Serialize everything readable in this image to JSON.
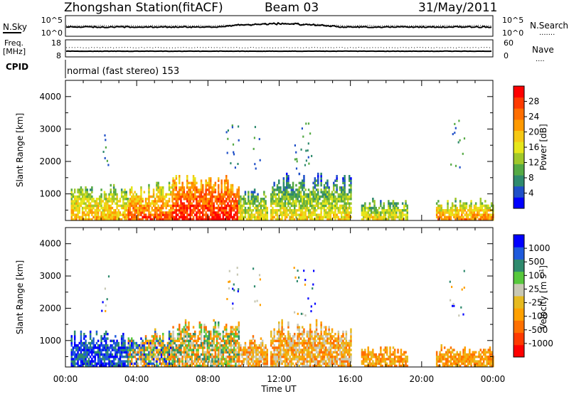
{
  "header": {
    "station": "Zhongshan Station",
    "algorithm": "(fitACF)",
    "beam": "Beam 03",
    "date": "31/May/2011"
  },
  "panels": {
    "nsky": {
      "left_label": "N.Sky",
      "left_ticks": [
        "10^5",
        "10^0"
      ],
      "right_label": "N.Search",
      "right_ticks": [
        "10^5",
        "10^0"
      ],
      "right_legend": "......."
    },
    "freq": {
      "left_label_1": "Freq.",
      "left_label_2": "[MHz]",
      "left_ticks": [
        "18",
        "8"
      ],
      "right_label": "Nave",
      "right_ticks": [
        "60",
        "0"
      ],
      "right_legend": "...."
    },
    "cpid": {
      "label": "CPID",
      "text": "normal (fast stereo) 153"
    }
  },
  "x_axis": {
    "label": "Time UT",
    "ticks": [
      "00:00",
      "04:00",
      "08:00",
      "12:00",
      "16:00",
      "20:00",
      "00:00"
    ]
  },
  "colorbars": {
    "power": {
      "label": "Power [dB]",
      "ticks": [
        "4",
        "8",
        "12",
        "16",
        "20",
        "24",
        "28"
      ],
      "colors": [
        "#0000ff",
        "#2050c8",
        "#2f8a6e",
        "#55aa44",
        "#a0c82a",
        "#e6e61a",
        "#f5c814",
        "#ff9a00",
        "#ff6e00",
        "#ff3a00",
        "#ff0000"
      ]
    },
    "velocity": {
      "label": "Velocity [m s",
      "label_exp": "-1",
      "label_end": "]",
      "ticks": [
        "1000",
        "500",
        "100",
        "25",
        "-25",
        "-100",
        "-500",
        "-1000"
      ],
      "colors": [
        "#0000ff",
        "#1e5adc",
        "#2f8a6e",
        "#57c83c",
        "#c8c8b4",
        "#e6ba20",
        "#ffa000",
        "#ff7000",
        "#ff3a00",
        "#ff0000"
      ]
    }
  },
  "chart_data": [
    {
      "type": "heatmap",
      "title": "",
      "xlabel": "Time UT",
      "ylabel": "Slant Range [km]",
      "xlim": [
        "00:00",
        "24:00"
      ],
      "ylim": [
        180,
        4500
      ],
      "y_ticks": [
        1000,
        2000,
        3000,
        4000
      ],
      "colorbar_label": "Power [dB]",
      "colorbar_ticks": [
        4,
        8,
        12,
        16,
        20,
        24,
        28
      ],
      "echo_regions": [
        {
          "start": 0.3,
          "end": 3.5,
          "range_top": 1350,
          "dominant_value": "12-24 dB"
        },
        {
          "start": 3.5,
          "end": 6.0,
          "range_top": 1400,
          "dominant_value": "16-28 dB"
        },
        {
          "start": 6.0,
          "end": 9.7,
          "range_top": 1700,
          "dominant_value": "24-32 dB"
        },
        {
          "start": 9.7,
          "end": 11.3,
          "range_top": 1200,
          "dominant_value": "8-20 dB"
        },
        {
          "start": 11.5,
          "end": 16.0,
          "range_top": 1700,
          "dominant_value": "8-24 dB"
        },
        {
          "start": 16.6,
          "end": 19.2,
          "range_top": 900,
          "dominant_value": "8-20 dB"
        },
        {
          "start": 20.8,
          "end": 24.0,
          "range_top": 900,
          "dominant_value": "8-24 dB"
        }
      ]
    },
    {
      "type": "heatmap",
      "title": "",
      "xlabel": "Time UT",
      "ylabel": "Slant Range [km]",
      "xlim": [
        "00:00",
        "24:00"
      ],
      "ylim": [
        180,
        4500
      ],
      "y_ticks": [
        1000,
        2000,
        3000,
        4000
      ],
      "colorbar_label": "Velocity [m s-1]",
      "colorbar_ticks": [
        1000,
        500,
        100,
        25,
        -25,
        -100,
        -500,
        -1000
      ],
      "echo_regions": [
        {
          "start": 0.3,
          "end": 3.5,
          "range_top": 1350,
          "dominant_value": "100 to 1000 m/s"
        },
        {
          "start": 3.5,
          "end": 6.0,
          "range_top": 1400,
          "dominant_value": "-500 to 1000 m/s"
        },
        {
          "start": 6.0,
          "end": 9.7,
          "range_top": 1700,
          "dominant_value": "-500 to 500 m/s"
        },
        {
          "start": 9.7,
          "end": 11.3,
          "range_top": 1200,
          "dominant_value": "-500 to 100 m/s"
        },
        {
          "start": 11.5,
          "end": 16.0,
          "range_top": 1700,
          "dominant_value": "-500 to 25 m/s"
        },
        {
          "start": 16.6,
          "end": 19.2,
          "range_top": 900,
          "dominant_value": "-500 to -100 m/s"
        },
        {
          "start": 20.8,
          "end": 24.0,
          "range_top": 900,
          "dominant_value": "-500 to -100 m/s"
        }
      ]
    }
  ]
}
